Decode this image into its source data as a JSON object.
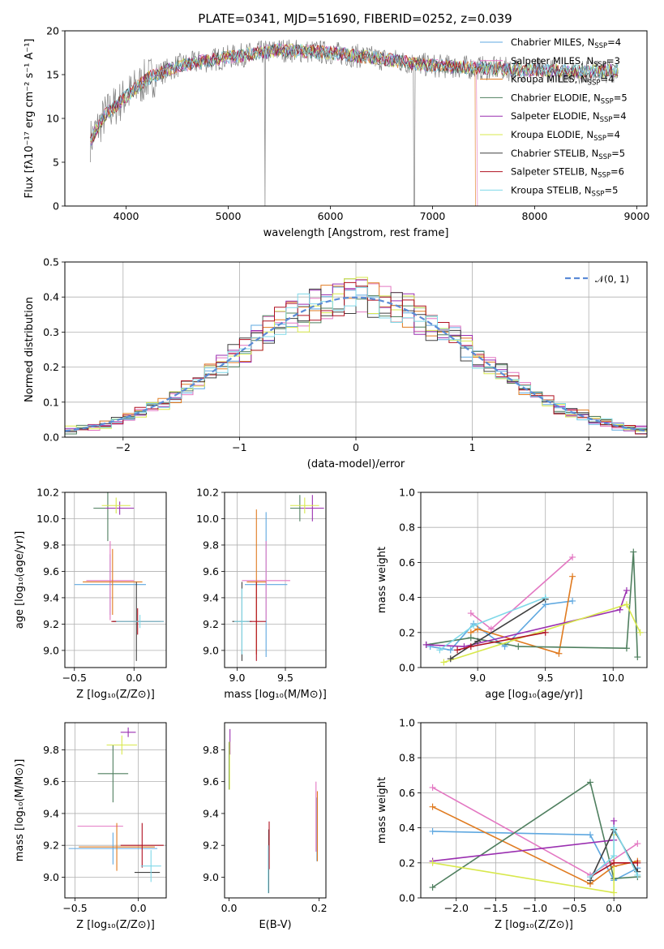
{
  "figure": {
    "title": "PLATE=0341, MJD=51690, FIBERID=0252, z=0.039"
  },
  "series_legend": [
    {
      "name": "Chabrier MILES",
      "n": "4",
      "color": "#5fa8e0"
    },
    {
      "name": "Salpeter MILES",
      "n": "3",
      "color": "#e377c2"
    },
    {
      "name": "Kroupa MILES",
      "n": "4",
      "color": "#e07b20"
    },
    {
      "name": "Chabrier ELODIE",
      "n": "5",
      "color": "#4f7f5f"
    },
    {
      "name": "Salpeter ELODIE",
      "n": "4",
      "color": "#9a2fb0"
    },
    {
      "name": "Kroupa ELODIE",
      "n": "4",
      "color": "#d8e84c"
    },
    {
      "name": "Chabrier STELIB",
      "n": "5",
      "color": "#404040"
    },
    {
      "name": "Salpeter STELIB",
      "n": "6",
      "color": "#b01020"
    },
    {
      "name": "Kroupa STELIB",
      "n": "5",
      "color": "#7fd8e8"
    }
  ],
  "chart_data": [
    {
      "id": "spectrum",
      "type": "line",
      "xlabel": "wavelength [Angstrom, rest frame]",
      "ylabel": "Flux [fλ10⁻¹⁷ erg cm⁻² s⁻¹ A⁻¹]",
      "xlim": [
        3400,
        9100
      ],
      "ylim": [
        0,
        20
      ],
      "xticks": [
        4000,
        5000,
        6000,
        7000,
        8000,
        9000
      ],
      "yticks": [
        0,
        5,
        10,
        15,
        20
      ],
      "grid": false,
      "legend": "top-right",
      "data_envelope": {
        "x": [
          3650,
          3800,
          4000,
          4200,
          4500,
          5000,
          5500,
          6000,
          6500,
          7000,
          7400,
          8000,
          8500,
          8800
        ],
        "y": [
          7.5,
          10.5,
          12.5,
          14.5,
          16.0,
          17.0,
          17.8,
          17.5,
          16.8,
          16.0,
          15.8,
          15.5,
          15.3,
          15.5
        ]
      },
      "model_cutoffs": [
        {
          "model": "Kroupa MILES",
          "x": 7420
        },
        {
          "model": "Salpeter MILES",
          "x": 7440
        }
      ]
    },
    {
      "id": "residuals",
      "type": "histogram",
      "xlabel": "(data-model)/error",
      "ylabel": "Normed distribution",
      "xlim": [
        -2.5,
        2.5
      ],
      "ylim": [
        0,
        0.5
      ],
      "xticks": [
        -2,
        -1,
        0,
        1,
        2
      ],
      "yticks": [
        0.0,
        0.1,
        0.2,
        0.3,
        0.4,
        0.5
      ],
      "grid": true,
      "legend": "top-right",
      "reference_curve": {
        "name": "𝒩(0, 1)",
        "mean": 0,
        "sigma": 1
      },
      "bin_width": 0.1
    },
    {
      "id": "age_vs_Z",
      "type": "errorbar",
      "xlabel": "Z [log₁₀(Z/Z⊙)]",
      "ylabel": "age  [log₁₀(age/yr)]",
      "xlim": [
        -0.58,
        0.27
      ],
      "ylim": [
        8.87,
        10.2
      ],
      "xticks": [
        -0.5,
        0.0
      ],
      "yticks": [
        9.0,
        9.2,
        9.4,
        9.6,
        9.8,
        10.0,
        10.2
      ],
      "grid": true,
      "points": [
        {
          "s": 0,
          "x": -0.2,
          "y": 9.5,
          "xe": 0.3,
          "ye": 0.23
        },
        {
          "s": 1,
          "x": -0.2,
          "y": 9.53,
          "xe": 0.2,
          "ye": 0.3
        },
        {
          "s": 2,
          "x": -0.18,
          "y": 9.52,
          "xe": 0.25,
          "ye": 0.25
        },
        {
          "s": 3,
          "x": -0.22,
          "y": 10.08,
          "xe": 0.12,
          "ye": 0.25
        },
        {
          "s": 4,
          "x": -0.12,
          "y": 10.08,
          "xe": 0.12,
          "ye": 0.05
        },
        {
          "s": 5,
          "x": -0.15,
          "y": 10.1,
          "xe": 0.12,
          "ye": 0.06
        },
        {
          "s": 6,
          "x": 0.02,
          "y": 9.22,
          "xe": 0.2,
          "ye": 0.3
        },
        {
          "s": 7,
          "x": 0.03,
          "y": 9.22,
          "xe": 0.22,
          "ye": 0.1
        },
        {
          "s": 8,
          "x": 0.05,
          "y": 9.22,
          "xe": 0.2,
          "ye": 0.05
        }
      ]
    },
    {
      "id": "age_vs_mass",
      "type": "errorbar",
      "xlabel": "mass [log₁₀(M/M⊙)]",
      "ylabel": "",
      "xlim": [
        8.87,
        9.92
      ],
      "ylim": [
        8.87,
        10.2
      ],
      "xticks": [
        9.0,
        9.5
      ],
      "yticks": [
        9.0,
        9.2,
        9.4,
        9.6,
        9.8,
        10.0,
        10.2
      ],
      "grid": true,
      "points": [
        {
          "s": 0,
          "x": 9.3,
          "y": 9.5,
          "xe": 0.22,
          "ye": 0.55
        },
        {
          "s": 1,
          "x": 9.3,
          "y": 9.53,
          "xe": 0.25,
          "ye": 0.3
        },
        {
          "s": 2,
          "x": 9.2,
          "y": 9.52,
          "xe": 0.1,
          "ye": 0.55
        },
        {
          "s": 3,
          "x": 9.65,
          "y": 10.08,
          "xe": 0.1,
          "ye": 0.1
        },
        {
          "s": 4,
          "x": 9.78,
          "y": 10.08,
          "xe": 0.12,
          "ye": 0.1
        },
        {
          "s": 5,
          "x": 9.7,
          "y": 10.1,
          "xe": 0.15,
          "ye": 0.06
        },
        {
          "s": 6,
          "x": 9.05,
          "y": 9.22,
          "xe": 0.1,
          "ye": 0.3
        },
        {
          "s": 7,
          "x": 9.2,
          "y": 9.22,
          "xe": 0.1,
          "ye": 0.3
        },
        {
          "s": 8,
          "x": 9.05,
          "y": 9.22,
          "xe": 0.08,
          "ye": 0.25
        }
      ]
    },
    {
      "id": "weight_vs_age",
      "type": "line",
      "xlabel": "age  [log₁₀(age/yr)]",
      "ylabel": "mass weight",
      "xlim": [
        8.58,
        10.25
      ],
      "ylim": [
        0,
        1
      ],
      "xticks": [
        9.0,
        9.5,
        10.0
      ],
      "yticks": [
        0.0,
        0.2,
        0.4,
        0.6,
        0.8,
        1.0
      ],
      "grid": true,
      "series": [
        {
          "s": 0,
          "x": [
            8.65,
            8.8,
            8.97,
            9.2,
            9.5,
            9.7
          ],
          "y": [
            0.12,
            0.1,
            0.25,
            0.12,
            0.36,
            0.38
          ]
        },
        {
          "s": 1,
          "x": [
            8.95,
            9.1,
            9.7
          ],
          "y": [
            0.31,
            0.22,
            0.63
          ]
        },
        {
          "s": 2,
          "x": [
            8.95,
            9.0,
            9.6,
            9.7
          ],
          "y": [
            0.2,
            0.22,
            0.08,
            0.52
          ]
        },
        {
          "s": 3,
          "x": [
            8.62,
            8.95,
            9.3,
            10.1,
            10.15,
            10.18
          ],
          "y": [
            0.13,
            0.17,
            0.12,
            0.11,
            0.66,
            0.06
          ]
        },
        {
          "s": 4,
          "x": [
            8.62,
            8.9,
            10.05,
            10.1
          ],
          "y": [
            0.13,
            0.12,
            0.33,
            0.44
          ]
        },
        {
          "s": 5,
          "x": [
            8.75,
            10.1,
            10.2
          ],
          "y": [
            0.03,
            0.36,
            0.2
          ]
        },
        {
          "s": 6,
          "x": [
            8.8,
            9.0,
            9.5
          ],
          "y": [
            0.05,
            0.15,
            0.39
          ]
        },
        {
          "s": 7,
          "x": [
            8.85,
            8.95,
            9.5
          ],
          "y": [
            0.1,
            0.12,
            0.2
          ]
        },
        {
          "s": 8,
          "x": [
            8.72,
            8.97,
            9.5
          ],
          "y": [
            0.1,
            0.24,
            0.4
          ]
        }
      ]
    },
    {
      "id": "mass_vs_Z",
      "type": "errorbar",
      "xlabel": "Z [log₁₀(Z/Z⊙)]",
      "ylabel": "mass [log₁₀(M/M⊙)]",
      "xlim": [
        -0.58,
        0.22
      ],
      "ylim": [
        8.87,
        9.97
      ],
      "xticks": [
        -0.5,
        0.0
      ],
      "yticks": [
        9.0,
        9.2,
        9.4,
        9.6,
        9.8
      ],
      "grid": true,
      "points": [
        {
          "s": 0,
          "x": -0.2,
          "y": 9.18,
          "xe": 0.35,
          "ye": 0.1
        },
        {
          "s": 1,
          "x": -0.3,
          "y": 9.32,
          "xe": 0.18,
          "ye": 0.0
        },
        {
          "s": 2,
          "x": -0.17,
          "y": 9.19,
          "xe": 0.3,
          "ye": 0.15
        },
        {
          "s": 3,
          "x": -0.2,
          "y": 9.65,
          "xe": 0.12,
          "ye": 0.18
        },
        {
          "s": 4,
          "x": -0.08,
          "y": 9.91,
          "xe": 0.06,
          "ye": 0.03
        },
        {
          "s": 5,
          "x": -0.13,
          "y": 9.83,
          "xe": 0.12,
          "ye": 0.06
        },
        {
          "s": 6,
          "x": 0.07,
          "y": 9.03,
          "xe": 0.1,
          "ye": 0.0
        },
        {
          "s": 7,
          "x": 0.03,
          "y": 9.2,
          "xe": 0.17,
          "ye": 0.14
        },
        {
          "s": 8,
          "x": 0.1,
          "y": 9.07,
          "xe": 0.08,
          "ye": 0.1
        }
      ]
    },
    {
      "id": "mass_vs_ebv",
      "type": "errorbar",
      "xlabel": "E(B-V)",
      "ylabel": "",
      "xlim": [
        -0.01,
        0.215
      ],
      "ylim": [
        8.87,
        9.97
      ],
      "xticks": [
        0.0,
        0.2
      ],
      "yticks": [
        9.0,
        9.2,
        9.4,
        9.6,
        9.8
      ],
      "grid": false,
      "points": [
        {
          "s": 0,
          "x": 0.195,
          "y": 9.3,
          "xe": 0,
          "ye": 0.2
        },
        {
          "s": 1,
          "x": 0.193,
          "y": 9.38,
          "xe": 0,
          "ye": 0.22
        },
        {
          "s": 2,
          "x": 0.196,
          "y": 9.32,
          "xe": 0,
          "ye": 0.22
        },
        {
          "s": 3,
          "x": 0.0,
          "y": 9.7,
          "xe": 0,
          "ye": 0.15
        },
        {
          "s": 4,
          "x": 0.002,
          "y": 9.85,
          "xe": 0,
          "ye": 0.08
        },
        {
          "s": 5,
          "x": 0.001,
          "y": 9.7,
          "xe": 0,
          "ye": 0.15
        },
        {
          "s": 6,
          "x": 0.088,
          "y": 9.1,
          "xe": 0,
          "ye": 0.2
        },
        {
          "s": 7,
          "x": 0.089,
          "y": 9.2,
          "xe": 0,
          "ye": 0.15
        },
        {
          "s": 8,
          "x": 0.087,
          "y": 9.05,
          "xe": 0,
          "ye": 0.15
        }
      ]
    },
    {
      "id": "weight_vs_Z",
      "type": "line",
      "xlabel": "Z [log₁₀(Z/Z⊙)]",
      "ylabel": "mass weight",
      "xlim": [
        -2.45,
        0.42
      ],
      "ylim": [
        0,
        1
      ],
      "xticks": [
        -2.0,
        -1.5,
        -1.0,
        -0.5,
        0.0
      ],
      "yticks": [
        0.0,
        0.2,
        0.4,
        0.6,
        0.8,
        1.0
      ],
      "grid": true,
      "series": [
        {
          "s": 0,
          "x": [
            -2.3,
            -0.3,
            0.0,
            0.3
          ],
          "y": [
            0.38,
            0.36,
            0.1,
            0.17
          ]
        },
        {
          "s": 1,
          "x": [
            -2.3,
            -0.3,
            0.3
          ],
          "y": [
            0.63,
            0.13,
            0.31
          ]
        },
        {
          "s": 2,
          "x": [
            -2.3,
            -0.3,
            0.0,
            0.3
          ],
          "y": [
            0.52,
            0.08,
            0.18,
            0.21
          ]
        },
        {
          "s": 3,
          "x": [
            -2.3,
            -0.3,
            0.0,
            0.3
          ],
          "y": [
            0.06,
            0.66,
            0.11,
            0.12
          ]
        },
        {
          "s": 4,
          "x": [
            -2.3,
            0.0,
            0.0
          ],
          "y": [
            0.21,
            0.33,
            0.44
          ]
        },
        {
          "s": 5,
          "x": [
            -2.3,
            0.0,
            0.0
          ],
          "y": [
            0.2,
            0.03,
            0.36
          ]
        },
        {
          "s": 6,
          "x": [
            -0.3,
            0.0,
            0.3
          ],
          "y": [
            0.1,
            0.39,
            0.15
          ]
        },
        {
          "s": 7,
          "x": [
            -0.3,
            0.0,
            0.3
          ],
          "y": [
            0.12,
            0.2,
            0.2
          ]
        },
        {
          "s": 8,
          "x": [
            -0.3,
            0.0,
            0.0,
            0.3
          ],
          "y": [
            0.12,
            0.24,
            0.4,
            0.13
          ]
        }
      ]
    }
  ]
}
